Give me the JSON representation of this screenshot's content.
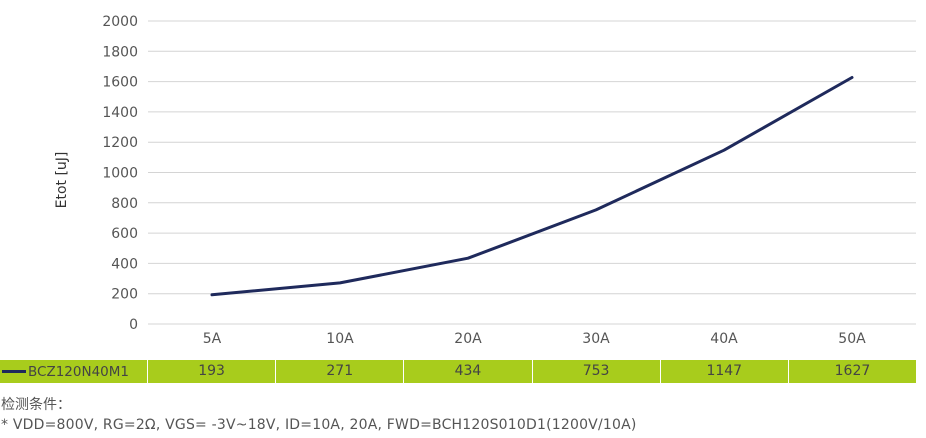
{
  "chart_data": {
    "type": "line",
    "categories": [
      "5A",
      "10A",
      "20A",
      "30A",
      "40A",
      "50A"
    ],
    "series": [
      {
        "name": "BCZ120N40M1",
        "values": [
          193,
          271,
          434,
          753,
          1147,
          1627
        ],
        "color": "#1f2a5c"
      }
    ],
    "yticks": [
      0,
      200,
      400,
      600,
      800,
      1000,
      1200,
      1400,
      1600,
      1800,
      2000
    ],
    "ylim": [
      0,
      2000
    ],
    "ylabel": "Etot [uJ]",
    "xlabel": "",
    "grid": true,
    "legend": "data-table-below"
  },
  "table": {
    "series_label": "BCZ120N40M1",
    "values": [
      "193",
      "271",
      "434",
      "753",
      "1147",
      "1627"
    ],
    "color": "#a8cc1c"
  },
  "conditions": {
    "title": "检测条件：",
    "text": "* VDD=800V, RG=2Ω, VGS= -3V~18V, ID=10A, 20A, FWD=BCH120S010D1(1200V/10A)"
  }
}
